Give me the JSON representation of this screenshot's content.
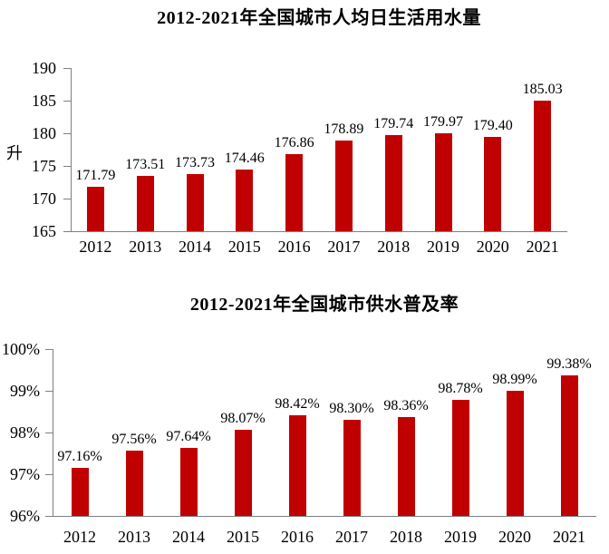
{
  "colors": {
    "bar": "#c00000",
    "axis": "#7f7f7f",
    "text": "#000000",
    "background": "#ffffff"
  },
  "chart_data": [
    {
      "type": "bar",
      "title": "2012-2021年全国城市人均日生活用水量",
      "ylabel": "升",
      "xlabel": "",
      "categories": [
        "2012",
        "2013",
        "2014",
        "2015",
        "2016",
        "2017",
        "2018",
        "2019",
        "2020",
        "2021"
      ],
      "values": [
        171.79,
        173.51,
        173.73,
        174.46,
        176.86,
        178.89,
        179.74,
        179.97,
        179.4,
        185.03
      ],
      "data_labels": [
        "171.79",
        "173.51",
        "173.73",
        "174.46",
        "176.86",
        "178.89",
        "179.74",
        "179.97",
        "179.40",
        "185.03"
      ],
      "ylim": [
        165,
        190
      ],
      "yticks": [
        165,
        170,
        175,
        180,
        185,
        190
      ],
      "ytick_labels": [
        "165",
        "170",
        "175",
        "180",
        "185",
        "190"
      ],
      "grid": false,
      "legend": "none",
      "bar_color": "#c00000"
    },
    {
      "type": "bar",
      "title": "2012-2021年全国城市供水普及率",
      "ylabel": "",
      "xlabel": "",
      "categories": [
        "2012",
        "2013",
        "2014",
        "2015",
        "2016",
        "2017",
        "2018",
        "2019",
        "2020",
        "2021"
      ],
      "values": [
        97.16,
        97.56,
        97.64,
        98.07,
        98.42,
        98.3,
        98.36,
        98.78,
        98.99,
        99.38
      ],
      "data_labels": [
        "97.16%",
        "97.56%",
        "97.64%",
        "98.07%",
        "98.42%",
        "98.30%",
        "98.36%",
        "98.78%",
        "98.99%",
        "99.38%"
      ],
      "ylim": [
        96,
        100
      ],
      "yticks": [
        96,
        97,
        98,
        99,
        100
      ],
      "ytick_labels": [
        "96%",
        "97%",
        "98%",
        "99%",
        "100%"
      ],
      "grid": false,
      "legend": "none",
      "bar_color": "#c00000"
    }
  ]
}
